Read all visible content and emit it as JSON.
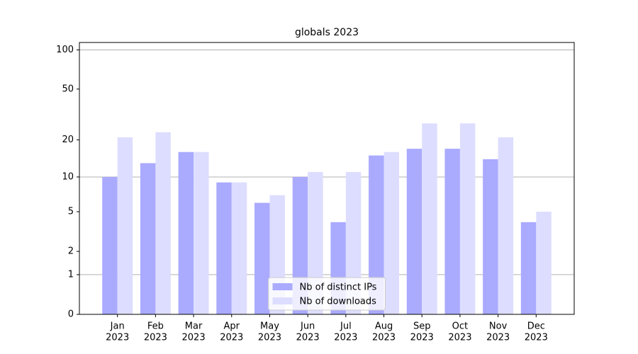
{
  "chart_data": {
    "type": "bar",
    "title": "globals 2023",
    "categories": [
      [
        "Jan",
        "2023"
      ],
      [
        "Feb",
        "2023"
      ],
      [
        "Mar",
        "2023"
      ],
      [
        "Apr",
        "2023"
      ],
      [
        "May",
        "2023"
      ],
      [
        "Jun",
        "2023"
      ],
      [
        "Jul",
        "2023"
      ],
      [
        "Aug",
        "2023"
      ],
      [
        "Sep",
        "2023"
      ],
      [
        "Oct",
        "2023"
      ],
      [
        "Nov",
        "2023"
      ],
      [
        "Dec",
        "2023"
      ]
    ],
    "series": [
      {
        "name": "Nb of distinct IPs",
        "color": "#aaaaff",
        "values": [
          10,
          13,
          16,
          9,
          6,
          10,
          4,
          15,
          17,
          17,
          14,
          4
        ]
      },
      {
        "name": "Nb of downloads",
        "color": "#ddddff",
        "values": [
          21,
          23,
          16,
          9,
          7,
          11,
          11,
          16,
          27,
          27,
          21,
          5
        ]
      }
    ],
    "yscale": "log1p",
    "ylim": [
      0,
      114
    ],
    "yticks": [
      0,
      1,
      2,
      5,
      10,
      20,
      50,
      100
    ],
    "grid_ticks": [
      1,
      10,
      100
    ],
    "legend": "lower center"
  }
}
